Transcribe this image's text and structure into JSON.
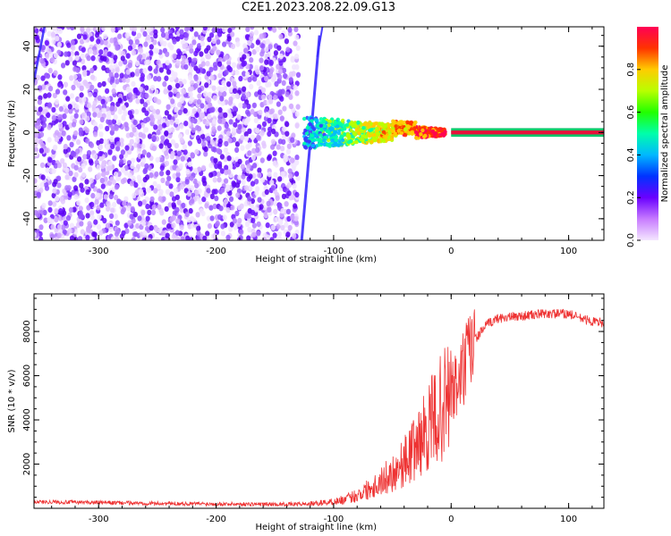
{
  "title": "C2E1.2023.208.22.09.G13",
  "chart_data": [
    {
      "type": "heatmap",
      "xlabel": "Height of straight line (km)",
      "ylabel": "Frequency (Hz)",
      "xlim": [
        -355,
        130
      ],
      "ylim": [
        -50,
        49
      ],
      "xticks": [
        -300,
        -200,
        -100,
        0,
        100
      ],
      "yticks": [
        -40,
        -20,
        0,
        20,
        40
      ],
      "colorbar": {
        "label": "Normalized spectral amplitude",
        "range": [
          0,
          1
        ],
        "ticks": [
          0.0,
          0.2,
          0.4,
          0.6,
          0.8
        ],
        "colors": [
          "#f4e6ff",
          "#c77bff",
          "#6a00ff",
          "#0033ff",
          "#00b8ff",
          "#00ffaa",
          "#22ff00",
          "#b8ff00",
          "#ffcc00",
          "#ff3300",
          "#ff0055"
        ]
      },
      "features": [
        {
          "name": "noise",
          "x_range": [
            -355,
            -130
          ],
          "freq_range": [
            -50,
            49
          ],
          "amplitude": 0.15
        },
        {
          "name": "signal",
          "x_range": [
            -125,
            130
          ],
          "freq": 0,
          "amplitude": 0.95
        }
      ]
    },
    {
      "type": "line",
      "xlabel": "Height of straight line (km)",
      "ylabel": "SNR (10 * v/v)",
      "xlim": [
        -355,
        130
      ],
      "ylim": [
        0,
        9700
      ],
      "xticks": [
        -300,
        -200,
        -100,
        0,
        100
      ],
      "yticks": [
        2000,
        4000,
        6000,
        8000
      ],
      "color": "#ee3333",
      "x": [
        -355,
        -330,
        -300,
        -250,
        -200,
        -150,
        -120,
        -110,
        -100,
        -90,
        -80,
        -70,
        -60,
        -50,
        -40,
        -30,
        -20,
        -10,
        0,
        5,
        10,
        20,
        30,
        40,
        60,
        80,
        100,
        110,
        120,
        130
      ],
      "y": [
        300,
        280,
        260,
        220,
        200,
        180,
        200,
        250,
        300,
        400,
        600,
        900,
        1200,
        1600,
        2100,
        2800,
        3600,
        4400,
        5200,
        5500,
        6200,
        7600,
        8300,
        8600,
        8700,
        8800,
        8800,
        8600,
        8450,
        8400
      ]
    }
  ]
}
